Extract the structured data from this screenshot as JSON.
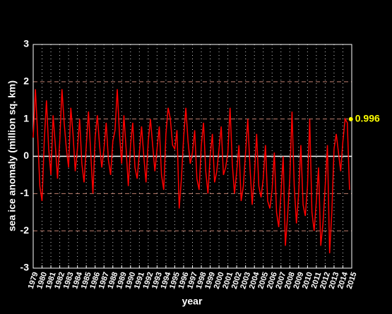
{
  "chart_data": {
    "type": "line",
    "y_label": "sea ice anomaly (million sq. km)",
    "x_label": "year",
    "x": [
      1979,
      1979.25,
      1979.5,
      1979.75,
      1980,
      1980.25,
      1980.5,
      1980.75,
      1981,
      1981.25,
      1981.5,
      1981.75,
      1982,
      1982.25,
      1982.5,
      1982.75,
      1983,
      1983.25,
      1983.5,
      1983.75,
      1984,
      1984.25,
      1984.5,
      1984.75,
      1985,
      1985.25,
      1985.5,
      1985.75,
      1986,
      1986.25,
      1986.5,
      1986.75,
      1987,
      1987.25,
      1987.5,
      1987.75,
      1988,
      1988.25,
      1988.5,
      1988.75,
      1989,
      1989.25,
      1989.5,
      1989.75,
      1990,
      1990.25,
      1990.5,
      1990.75,
      1991,
      1991.25,
      1991.5,
      1991.75,
      1992,
      1992.25,
      1992.5,
      1992.75,
      1993,
      1993.25,
      1993.5,
      1993.75,
      1994,
      1994.25,
      1994.5,
      1994.75,
      1995,
      1995.25,
      1995.5,
      1995.75,
      1996,
      1996.25,
      1996.5,
      1996.75,
      1997,
      1997.25,
      1997.5,
      1997.75,
      1998,
      1998.25,
      1998.5,
      1998.75,
      1999,
      1999.25,
      1999.5,
      1999.75,
      2000,
      2000.25,
      2000.5,
      2000.75,
      2001,
      2001.25,
      2001.5,
      2001.75,
      2002,
      2002.25,
      2002.5,
      2002.75,
      2003,
      2003.25,
      2003.5,
      2003.75,
      2004,
      2004.25,
      2004.5,
      2004.75,
      2005,
      2005.25,
      2005.5,
      2005.75,
      2006,
      2006.25,
      2006.5,
      2006.75,
      2007,
      2007.25,
      2007.5,
      2007.75,
      2008,
      2008.25,
      2008.5,
      2008.75,
      2009,
      2009.25,
      2009.5,
      2009.75,
      2010,
      2010.25,
      2010.5,
      2010.75,
      2011,
      2011.25,
      2011.5,
      2011.75,
      2012,
      2012.25,
      2012.5,
      2012.75,
      2013,
      2013.25,
      2013.5,
      2013.75,
      2014,
      2014.25,
      2014.5,
      2014.75
    ],
    "series": [
      {
        "color": "#ff0000",
        "values": [
          0.5,
          1.8,
          0.6,
          -0.8,
          -1.2,
          0.4,
          1.5,
          0.2,
          -0.5,
          1.1,
          0.3,
          -0.6,
          0.4,
          1.8,
          0.9,
          0.2,
          -0.3,
          1.3,
          0.6,
          -0.4,
          0.2,
          1.0,
          -0.2,
          -0.7,
          0.3,
          1.2,
          0.1,
          -1.0,
          0.5,
          1.1,
          0.3,
          -0.3,
          0.2,
          0.9,
          -0.1,
          -0.5,
          0.4,
          0.7,
          1.8,
          0.6,
          -0.2,
          1.1,
          0.2,
          -0.8,
          0.3,
          0.9,
          -0.3,
          -0.6,
          0.1,
          0.8,
          0.0,
          -0.7,
          0.4,
          1.0,
          0.3,
          -0.4,
          0.2,
          0.8,
          -0.5,
          -0.9,
          0.6,
          1.3,
          1.0,
          0.3,
          0.2,
          0.7,
          -1.4,
          -0.6,
          0.5,
          1.3,
          0.4,
          -0.2,
          0.1,
          0.7,
          -0.6,
          -0.9,
          0.3,
          0.9,
          -0.4,
          -1.0,
          0.0,
          0.6,
          -0.7,
          -0.4,
          0.2,
          0.8,
          -0.5,
          -0.3,
          0.1,
          1.3,
          -0.2,
          -1.0,
          -0.4,
          0.3,
          -1.2,
          -0.8,
          0.1,
          1.0,
          -0.3,
          -1.3,
          -0.5,
          0.6,
          -0.8,
          -1.1,
          -0.6,
          0.3,
          -1.2,
          -1.4,
          -0.9,
          0.1,
          -1.5,
          -1.9,
          -1.0,
          0.0,
          -2.4,
          -1.6,
          -0.6,
          1.2,
          -0.8,
          -1.8,
          -1.0,
          0.3,
          -1.3,
          -1.6,
          -0.8,
          1.0,
          -1.5,
          -2.0,
          -1.2,
          -0.3,
          -2.4,
          -1.8,
          -0.8,
          0.3,
          -2.6,
          -1.5,
          0.2,
          0.6,
          0.1,
          -0.4,
          0.4,
          1.0,
          0.9,
          -0.9
        ]
      }
    ],
    "annotation": {
      "x": 2014.9,
      "value": 0.996,
      "color": "#ffff00"
    },
    "xlim": [
      1979,
      2015
    ],
    "xticks": [
      1979,
      1980,
      1981,
      1982,
      1983,
      1984,
      1985,
      1986,
      1987,
      1988,
      1989,
      1990,
      1991,
      1992,
      1993,
      1994,
      1995,
      1996,
      1997,
      1998,
      1999,
      2000,
      2001,
      2002,
      2003,
      2004,
      2005,
      2006,
      2007,
      2008,
      2009,
      2010,
      2011,
      2012,
      2013,
      2014,
      2015
    ],
    "ylim": [
      -3,
      3
    ],
    "yticks": [
      -3,
      -2,
      -1,
      0,
      1,
      2,
      3
    ],
    "grid": true
  }
}
